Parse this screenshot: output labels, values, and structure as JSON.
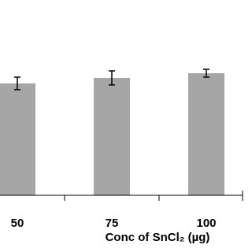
{
  "chart_data": {
    "type": "bar",
    "x_label": "Conc of SnCl₂ (µg)",
    "categories": [
      "50",
      "75",
      "100"
    ],
    "values": [
      57.3,
      60.1,
      62.5
    ],
    "errors": [
      3.2,
      3.6,
      2.0
    ],
    "color": "#a6a6a6",
    "ylim": [
      0,
      100
    ]
  }
}
